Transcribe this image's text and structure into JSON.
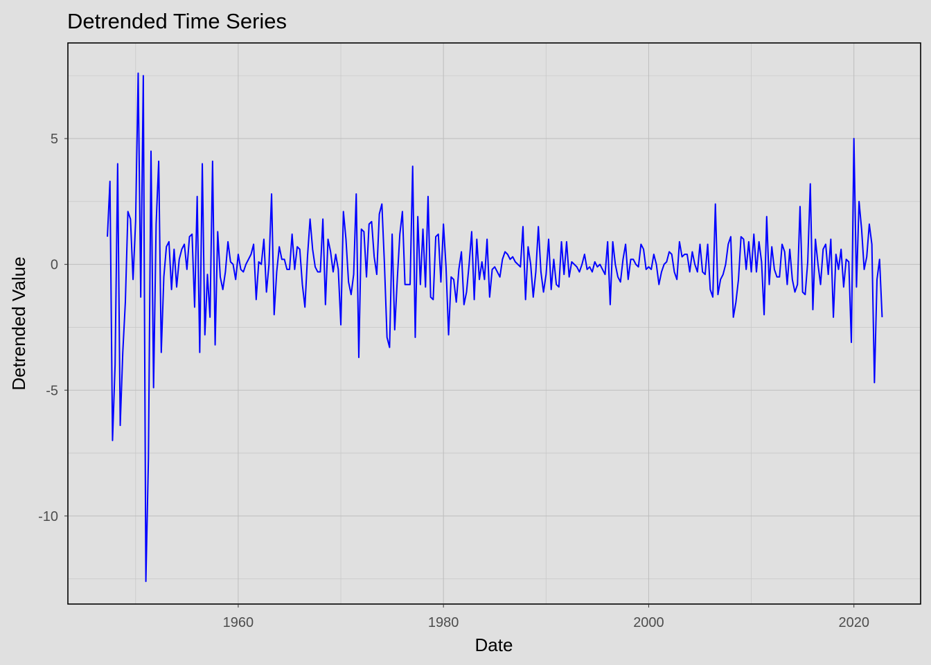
{
  "chart_data": {
    "type": "line",
    "title": "Detrended Time Series",
    "xlabel": "Date",
    "ylabel": "Detrended Value",
    "x_ticks": [
      1960,
      1980,
      2000,
      2020
    ],
    "y_ticks": [
      -10,
      -5,
      0,
      5
    ],
    "xlim": [
      1943.4,
      2026.5
    ],
    "ylim": [
      -13.5,
      8.8
    ],
    "grid": true,
    "legend": "none",
    "series": [
      {
        "color": "#0000ff",
        "x_start": 1947.25,
        "x_step": 0.25,
        "values": [
          1.1,
          3.3,
          -7.0,
          -4.0,
          4.0,
          -6.4,
          -3.5,
          -1.5,
          2.1,
          1.8,
          -0.6,
          1.7,
          7.6,
          -1.3,
          7.5,
          -12.6,
          -7.7,
          4.5,
          -4.9,
          1.6,
          4.1,
          -3.5,
          -0.5,
          0.7,
          0.9,
          -1.0,
          0.6,
          -0.9,
          0.2,
          0.6,
          0.8,
          -0.2,
          1.1,
          1.2,
          -1.7,
          2.7,
          -3.5,
          4.0,
          -2.8,
          -0.4,
          -2.1,
          4.1,
          -3.2,
          1.3,
          -0.5,
          -1.0,
          -0.3,
          0.9,
          0.1,
          0.0,
          -0.6,
          0.4,
          -0.2,
          -0.3,
          0.0,
          0.2,
          0.4,
          0.8,
          -1.4,
          0.1,
          0.0,
          1.0,
          -1.1,
          0.0,
          2.8,
          -2.0,
          -0.3,
          0.7,
          0.2,
          0.2,
          -0.2,
          -0.2,
          1.2,
          -0.2,
          0.7,
          0.6,
          -0.8,
          -1.7,
          0.3,
          1.8,
          0.6,
          -0.1,
          -0.3,
          -0.3,
          1.8,
          -1.6,
          1.0,
          0.5,
          -0.3,
          0.4,
          -0.2,
          -2.4,
          2.1,
          1.0,
          -0.7,
          -1.2,
          -0.4,
          2.8,
          -3.7,
          1.4,
          1.3,
          -0.5,
          1.6,
          1.7,
          0.3,
          -0.4,
          2.0,
          2.4,
          0.0,
          -2.9,
          -3.3,
          1.2,
          -2.6,
          -0.6,
          1.2,
          2.1,
          -0.8,
          -0.8,
          -0.8,
          3.9,
          -2.9,
          1.9,
          -0.8,
          1.4,
          -0.9,
          2.7,
          -1.3,
          -1.4,
          1.1,
          1.2,
          -0.7,
          1.6,
          -0.1,
          -2.8,
          -0.5,
          -0.6,
          -1.5,
          -0.2,
          0.5,
          -1.6,
          -1.1,
          0.0,
          1.3,
          -1.4,
          1.0,
          -0.6,
          0.1,
          -0.6,
          1.0,
          -1.3,
          -0.2,
          -0.1,
          -0.3,
          -0.5,
          0.2,
          0.5,
          0.4,
          0.2,
          0.3,
          0.1,
          0.0,
          -0.1,
          1.5,
          -1.4,
          0.7,
          0.0,
          -1.3,
          -0.3,
          1.5,
          -0.3,
          -1.1,
          -0.4,
          1.0,
          -1.0,
          0.2,
          -0.8,
          -0.9,
          0.9,
          -0.4,
          0.9,
          -0.5,
          0.1,
          0.0,
          -0.1,
          -0.3,
          0.0,
          0.4,
          -0.2,
          -0.1,
          -0.3,
          0.1,
          -0.1,
          0.0,
          -0.2,
          -0.4,
          0.9,
          -1.6,
          0.9,
          0.0,
          -0.5,
          -0.7,
          0.2,
          0.8,
          -0.6,
          0.2,
          0.2,
          0.0,
          -0.1,
          0.8,
          0.6,
          -0.2,
          -0.1,
          -0.2,
          0.4,
          0.0,
          -0.8,
          -0.3,
          0.0,
          0.1,
          0.5,
          0.4,
          -0.3,
          -0.6,
          0.9,
          0.3,
          0.4,
          0.4,
          -0.3,
          0.5,
          0.0,
          -0.3,
          0.8,
          -0.3,
          -0.4,
          0.8,
          -1.0,
          -1.3,
          2.4,
          -1.2,
          -0.6,
          -0.4,
          0.0,
          0.8,
          1.1,
          -2.1,
          -1.5,
          -0.6,
          1.1,
          1.0,
          -0.2,
          0.9,
          -0.3,
          1.2,
          -0.3,
          0.9,
          0.1,
          -2.0,
          1.9,
          -0.8,
          0.7,
          -0.2,
          -0.5,
          -0.5,
          0.8,
          0.5,
          -0.8,
          0.6,
          -0.6,
          -1.1,
          -0.8,
          2.3,
          -1.1,
          -1.2,
          0.1,
          3.2,
          -1.8,
          1.0,
          0.0,
          -0.8,
          0.6,
          0.8,
          -0.4,
          1.0,
          -2.1,
          0.4,
          -0.2,
          0.6,
          -0.9,
          0.2,
          0.1,
          -3.1,
          5.0,
          -0.9,
          2.5,
          1.4,
          -0.2,
          0.3,
          1.6,
          0.8,
          -4.7,
          -0.6,
          0.2,
          -2.1
        ]
      }
    ]
  }
}
